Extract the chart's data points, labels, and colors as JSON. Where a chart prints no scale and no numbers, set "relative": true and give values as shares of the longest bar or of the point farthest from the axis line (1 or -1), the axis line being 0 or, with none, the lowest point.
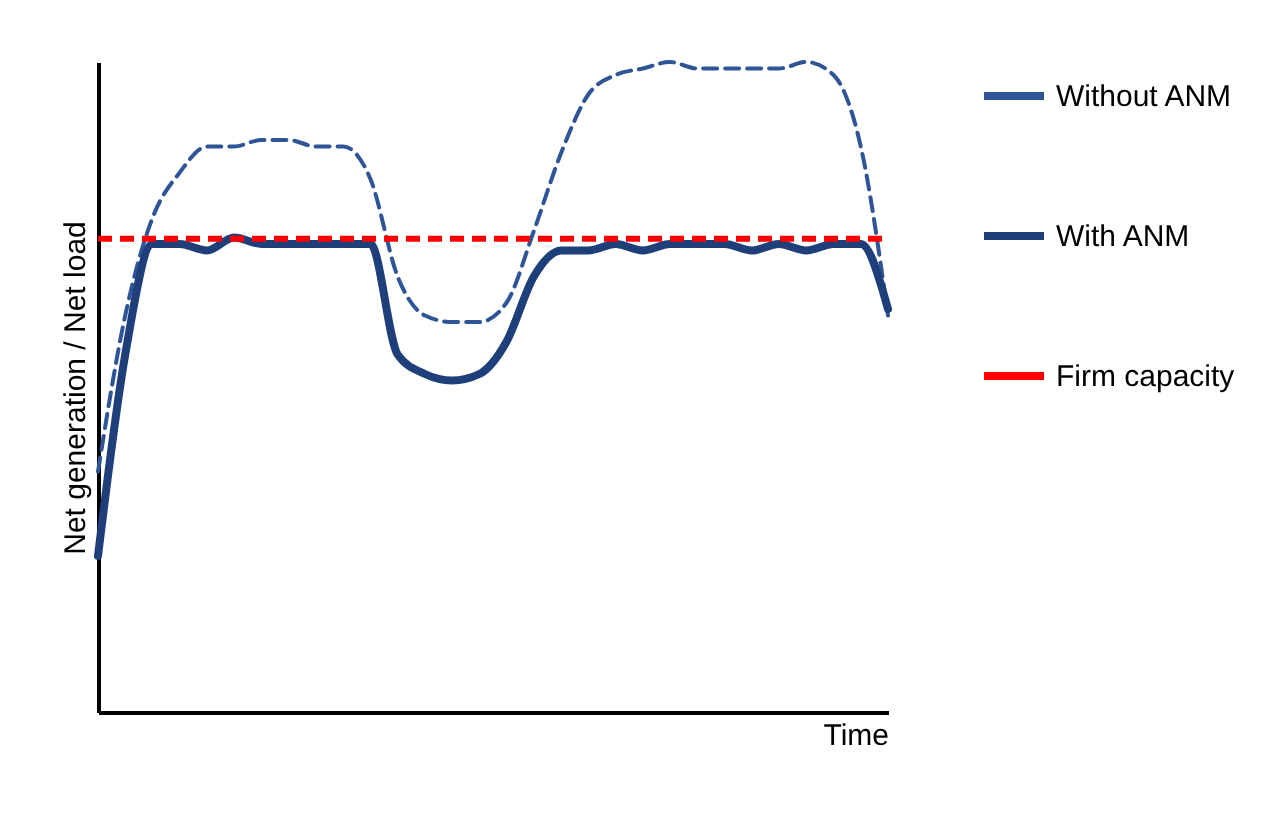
{
  "chart_data": {
    "type": "line",
    "relative": true,
    "xlabel": "Time",
    "ylabel": "Net generation / Net load",
    "categories": [
      null,
      null,
      null,
      null,
      null,
      null,
      null,
      null,
      null,
      null,
      null,
      null,
      null,
      null,
      null,
      null,
      null,
      null,
      null,
      null,
      null,
      null,
      null,
      null,
      null,
      null,
      null,
      null,
      null,
      null
    ],
    "series": [
      {
        "name": "Without ANM",
        "color": "#2f5597",
        "line_style": "dashed",
        "values": [
          0.37,
          0.61,
          0.76,
          0.83,
          0.87,
          0.87,
          0.88,
          0.88,
          0.87,
          0.87,
          0.82,
          0.67,
          0.61,
          0.6,
          0.6,
          0.63,
          0.74,
          0.86,
          0.95,
          0.98,
          0.99,
          1.0,
          0.99,
          0.99,
          0.99,
          0.99,
          1.0,
          0.98,
          0.87,
          0.61
        ]
      },
      {
        "name": "With ANM",
        "color": "#1f3f7a",
        "line_style": "solid",
        "values": [
          0.24,
          0.55,
          0.72,
          0.72,
          0.71,
          0.73,
          0.72,
          0.72,
          0.72,
          0.72,
          0.72,
          0.55,
          0.52,
          0.51,
          0.52,
          0.57,
          0.67,
          0.71,
          0.71,
          0.72,
          0.71,
          0.72,
          0.72,
          0.72,
          0.71,
          0.72,
          0.71,
          0.72,
          0.72,
          0.62
        ]
      }
    ],
    "ref_lines": [
      {
        "axis": "y",
        "value": 0.728,
        "label": "Firm capacity",
        "color": "#ff0000",
        "line_style": "dashed"
      }
    ],
    "grid": false,
    "legend": "right",
    "tick_labels": false
  }
}
